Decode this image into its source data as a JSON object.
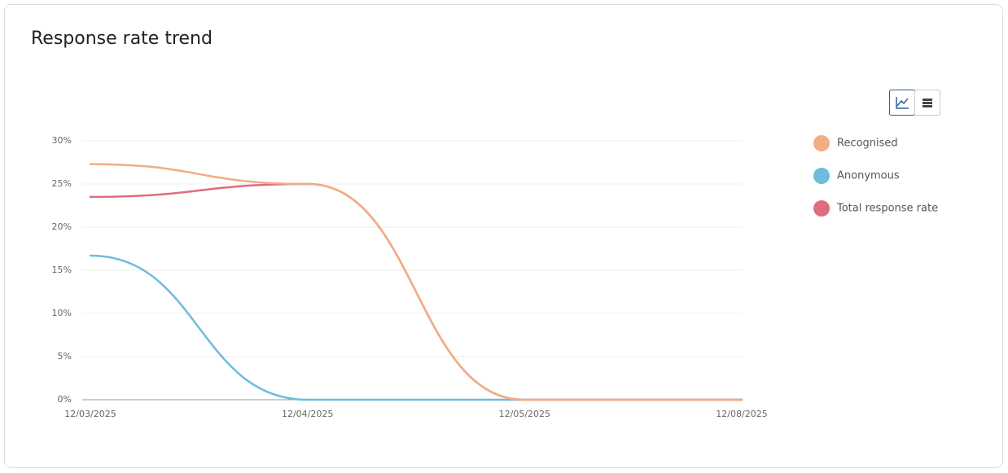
{
  "chart_data": {
    "type": "line",
    "title": "Response rate trend",
    "categories": [
      "12/03/2025",
      "12/04/2025",
      "12/05/2025",
      "12/08/2025"
    ],
    "series": [
      {
        "name": "Recognised",
        "color": "#f2ad84",
        "values": [
          27.3,
          25,
          0,
          0
        ]
      },
      {
        "name": "Anonymous",
        "color": "#6fbcdc",
        "values": [
          16.7,
          0,
          0,
          0
        ]
      },
      {
        "name": "Total response rate",
        "color": "#e06c80",
        "values": [
          23.5,
          25,
          0,
          0
        ]
      }
    ],
    "ylim": [
      0,
      30
    ],
    "yticks": [
      {
        "value": 0,
        "label": "0%"
      },
      {
        "value": 5,
        "label": "5%"
      },
      {
        "value": 10,
        "label": "10%"
      },
      {
        "value": 15,
        "label": "15%"
      },
      {
        "value": 20,
        "label": "20%"
      },
      {
        "value": 25,
        "label": "25%"
      },
      {
        "value": 30,
        "label": "30%"
      }
    ],
    "grid": true,
    "legend": "right"
  }
}
